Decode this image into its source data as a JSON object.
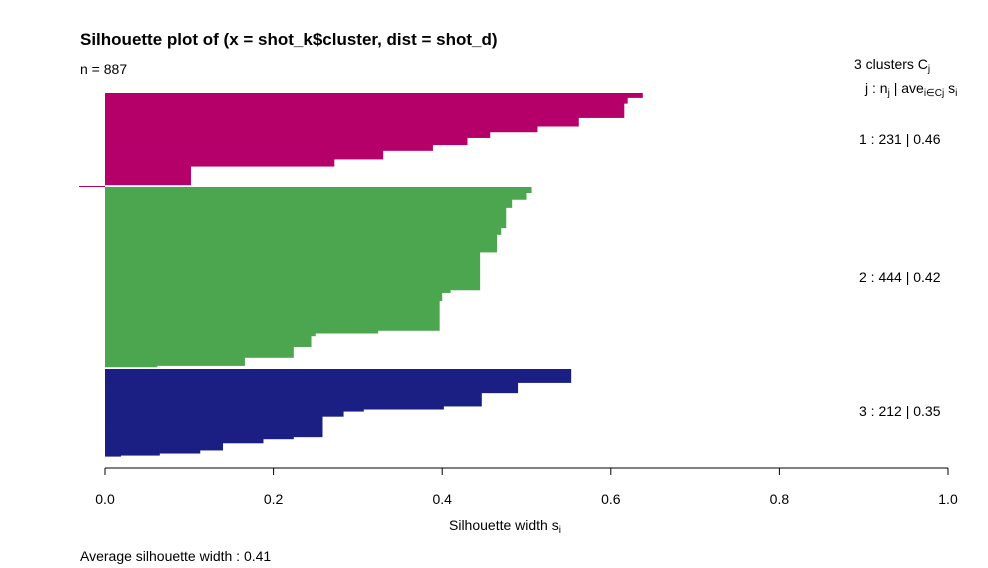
{
  "chart_data": {
    "type": "bar",
    "orientation": "horizontal",
    "title": "Silhouette plot of (x = shot_k$cluster, dist = shot_d)",
    "n_label": "n = 887",
    "xlabel": "Silhouette width",
    "xlabel_sub": "i",
    "xlim": [
      0,
      1
    ],
    "xticks": [
      0.0,
      0.2,
      0.4,
      0.6,
      0.8,
      1.0
    ],
    "xtick_labels": [
      "0.0",
      "0.2",
      "0.4",
      "0.6",
      "0.8",
      "1.0"
    ],
    "average_label": "Average silhouette width :  0.41",
    "legend": {
      "header_main": "3  clusters  C",
      "header_main_sub": "j",
      "header_sub_prefix": "j :  n",
      "header_sub_n_sub": "j",
      "header_sub_mid": " | ave",
      "header_sub_ave_sub": "i∈Cj",
      "header_sub_suffix": "  s",
      "header_sub_s_sub": "i"
    },
    "clusters": [
      {
        "label": "1 :   231  |  0.46",
        "n": 231,
        "average": 0.46,
        "color": "#B5006A",
        "steps": [
          [
            0.638,
            3
          ],
          [
            0.62,
            4
          ],
          [
            0.616,
            10
          ],
          [
            0.562,
            6
          ],
          [
            0.513,
            4
          ],
          [
            0.457,
            4
          ],
          [
            0.43,
            5
          ],
          [
            0.389,
            4
          ],
          [
            0.33,
            6
          ],
          [
            0.272,
            5
          ],
          [
            0.102,
            13
          ],
          [
            0.0,
            1
          ]
        ]
      },
      {
        "label": "2 :   444  |  0.42",
        "n": 444,
        "average": 0.42,
        "color": "#4CA64F",
        "steps": [
          [
            0.506,
            4
          ],
          [
            0.5,
            5
          ],
          [
            0.483,
            6
          ],
          [
            0.476,
            15
          ],
          [
            0.47,
            5
          ],
          [
            0.465,
            13
          ],
          [
            0.445,
            28
          ],
          [
            0.41,
            2
          ],
          [
            0.4,
            6
          ],
          [
            0.397,
            22
          ],
          [
            0.324,
            2
          ],
          [
            0.25,
            2
          ],
          [
            0.245,
            8
          ],
          [
            0.224,
            8
          ],
          [
            0.166,
            6
          ],
          [
            0.062,
            1
          ],
          [
            0.0,
            1
          ]
        ]
      },
      {
        "label": "3 :   212  |  0.35",
        "n": 212,
        "average": 0.35,
        "color": "#1B1F83",
        "steps": [
          [
            0.553,
            13
          ],
          [
            0.49,
            10
          ],
          [
            0.447,
            13
          ],
          [
            0.402,
            3
          ],
          [
            0.307,
            2
          ],
          [
            0.283,
            5
          ],
          [
            0.258,
            20
          ],
          [
            0.224,
            2
          ],
          [
            0.188,
            4
          ],
          [
            0.14,
            7
          ],
          [
            0.113,
            3
          ],
          [
            0.065,
            2
          ],
          [
            0.019,
            1
          ]
        ]
      }
    ]
  }
}
